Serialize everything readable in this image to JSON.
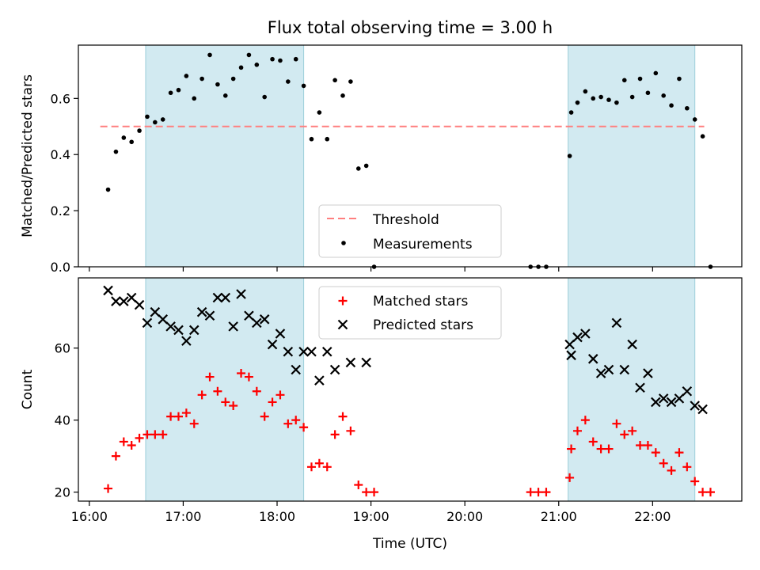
{
  "figure": {
    "title": "Flux total observing time = 3.00 h"
  },
  "colors": {
    "band": "#add8e6",
    "band_edge": "#9ccfd9",
    "threshold": "#ff7f7f",
    "measurement": "#000000",
    "matched": "#ff0000",
    "predicted": "#000000"
  },
  "chart_data": [
    {
      "type": "scatter",
      "panel": "top",
      "title": "Flux total observing time = 3.00 h",
      "xlabel": "",
      "ylabel": "Matched/Predicted stars",
      "xlim": [
        "15:53",
        "22:57"
      ],
      "ylim": [
        0,
        0.79
      ],
      "yticks": [
        "0.0",
        "0.2",
        "0.4",
        "0.6"
      ],
      "ytick_values": [
        0,
        0.2,
        0.4,
        0.6
      ],
      "xticks": [
        "16:00",
        "17:00",
        "18:00",
        "19:00",
        "20:00",
        "21:00",
        "22:00"
      ],
      "show_xtick_labels": false,
      "grid": false,
      "legend": {
        "placement": "bottom-center"
      },
      "shaded_intervals": [
        [
          "16:36",
          "18:17"
        ],
        [
          "21:06",
          "22:27"
        ]
      ],
      "threshold": {
        "name": "Threshold",
        "y": 0.5,
        "x_from": "16:07",
        "x_to": "22:33"
      },
      "series": [
        {
          "name": "Measurements",
          "marker": "dot",
          "points": [
            [
              "16:12",
              0.275
            ],
            [
              "16:17",
              0.41
            ],
            [
              "16:22",
              0.46
            ],
            [
              "16:27",
              0.445
            ],
            [
              "16:32",
              0.485
            ],
            [
              "16:37",
              0.535
            ],
            [
              "16:42",
              0.515
            ],
            [
              "16:47",
              0.525
            ],
            [
              "16:52",
              0.62
            ],
            [
              "16:57",
              0.63
            ],
            [
              "17:02",
              0.68
            ],
            [
              "17:07",
              0.6
            ],
            [
              "17:12",
              0.67
            ],
            [
              "17:17",
              0.755
            ],
            [
              "17:22",
              0.65
            ],
            [
              "17:27",
              0.61
            ],
            [
              "17:32",
              0.67
            ],
            [
              "17:37",
              0.71
            ],
            [
              "17:42",
              0.755
            ],
            [
              "17:47",
              0.72
            ],
            [
              "17:52",
              0.605
            ],
            [
              "17:57",
              0.74
            ],
            [
              "18:02",
              0.735
            ],
            [
              "18:07",
              0.66
            ],
            [
              "18:12",
              0.74
            ],
            [
              "18:17",
              0.645
            ],
            [
              "18:22",
              0.455
            ],
            [
              "18:27",
              0.55
            ],
            [
              "18:32",
              0.455
            ],
            [
              "18:37",
              0.665
            ],
            [
              "18:42",
              0.61
            ],
            [
              "18:47",
              0.66
            ],
            [
              "18:52",
              0.35
            ],
            [
              "18:57",
              0.36
            ],
            [
              "19:02",
              0.0
            ],
            [
              "20:42",
              0.0
            ],
            [
              "20:47",
              0.0
            ],
            [
              "20:52",
              0.0
            ],
            [
              "21:07",
              0.395
            ],
            [
              "21:08",
              0.55
            ],
            [
              "21:12",
              0.585
            ],
            [
              "21:17",
              0.625
            ],
            [
              "21:22",
              0.6
            ],
            [
              "21:27",
              0.605
            ],
            [
              "21:32",
              0.595
            ],
            [
              "21:37",
              0.585
            ],
            [
              "21:42",
              0.665
            ],
            [
              "21:47",
              0.605
            ],
            [
              "21:52",
              0.67
            ],
            [
              "21:57",
              0.62
            ],
            [
              "22:02",
              0.69
            ],
            [
              "22:07",
              0.61
            ],
            [
              "22:12",
              0.575
            ],
            [
              "22:17",
              0.67
            ],
            [
              "22:22",
              0.565
            ],
            [
              "22:27",
              0.525
            ],
            [
              "22:32",
              0.465
            ],
            [
              "22:37",
              0.0
            ]
          ]
        }
      ]
    },
    {
      "type": "scatter",
      "panel": "bottom",
      "xlabel": "Time (UTC)",
      "ylabel": "Count",
      "xlim": [
        "15:53",
        "22:57"
      ],
      "ylim": [
        17.5,
        79.5
      ],
      "yticks": [
        "20",
        "40",
        "60"
      ],
      "ytick_values": [
        20,
        40,
        60
      ],
      "xticks": [
        "16:00",
        "17:00",
        "18:00",
        "19:00",
        "20:00",
        "21:00",
        "22:00"
      ],
      "show_xtick_labels": true,
      "grid": false,
      "legend": {
        "placement": "top-center"
      },
      "shaded_intervals": [
        [
          "16:36",
          "18:17"
        ],
        [
          "21:06",
          "22:27"
        ]
      ],
      "series": [
        {
          "name": "Matched stars",
          "marker": "plus",
          "points": [
            [
              "16:12",
              21
            ],
            [
              "16:17",
              30
            ],
            [
              "16:22",
              34
            ],
            [
              "16:27",
              33
            ],
            [
              "16:32",
              35
            ],
            [
              "16:37",
              36
            ],
            [
              "16:42",
              36
            ],
            [
              "16:47",
              36
            ],
            [
              "16:52",
              41
            ],
            [
              "16:57",
              41
            ],
            [
              "17:02",
              42
            ],
            [
              "17:07",
              39
            ],
            [
              "17:12",
              47
            ],
            [
              "17:17",
              52
            ],
            [
              "17:22",
              48
            ],
            [
              "17:27",
              45
            ],
            [
              "17:32",
              44
            ],
            [
              "17:37",
              53
            ],
            [
              "17:42",
              52
            ],
            [
              "17:47",
              48
            ],
            [
              "17:52",
              41
            ],
            [
              "17:57",
              45
            ],
            [
              "18:02",
              47
            ],
            [
              "18:07",
              39
            ],
            [
              "18:12",
              40
            ],
            [
              "18:17",
              38
            ],
            [
              "18:22",
              27
            ],
            [
              "18:27",
              28
            ],
            [
              "18:32",
              27
            ],
            [
              "18:37",
              36
            ],
            [
              "18:42",
              41
            ],
            [
              "18:47",
              37
            ],
            [
              "18:52",
              22
            ],
            [
              "18:57",
              20
            ],
            [
              "19:02",
              20
            ],
            [
              "20:42",
              20
            ],
            [
              "20:47",
              20
            ],
            [
              "20:52",
              20
            ],
            [
              "21:07",
              24
            ],
            [
              "21:08",
              32
            ],
            [
              "21:12",
              37
            ],
            [
              "21:17",
              40
            ],
            [
              "21:22",
              34
            ],
            [
              "21:27",
              32
            ],
            [
              "21:32",
              32
            ],
            [
              "21:37",
              39
            ],
            [
              "21:42",
              36
            ],
            [
              "21:47",
              37
            ],
            [
              "21:52",
              33
            ],
            [
              "21:57",
              33
            ],
            [
              "22:02",
              31
            ],
            [
              "22:07",
              28
            ],
            [
              "22:12",
              26
            ],
            [
              "22:17",
              31
            ],
            [
              "22:22",
              27
            ],
            [
              "22:27",
              23
            ],
            [
              "22:32",
              20
            ],
            [
              "22:37",
              20
            ]
          ]
        },
        {
          "name": "Predicted stars",
          "marker": "x",
          "points": [
            [
              "16:12",
              76
            ],
            [
              "16:17",
              73
            ],
            [
              "16:22",
              73
            ],
            [
              "16:27",
              74
            ],
            [
              "16:32",
              72
            ],
            [
              "16:37",
              67
            ],
            [
              "16:42",
              70
            ],
            [
              "16:47",
              68
            ],
            [
              "16:52",
              66
            ],
            [
              "16:57",
              65
            ],
            [
              "17:02",
              62
            ],
            [
              "17:07",
              65
            ],
            [
              "17:12",
              70
            ],
            [
              "17:17",
              69
            ],
            [
              "17:22",
              74
            ],
            [
              "17:27",
              74
            ],
            [
              "17:32",
              66
            ],
            [
              "17:37",
              75
            ],
            [
              "17:42",
              69
            ],
            [
              "17:47",
              67
            ],
            [
              "17:52",
              68
            ],
            [
              "17:57",
              61
            ],
            [
              "18:02",
              64
            ],
            [
              "18:07",
              59
            ],
            [
              "18:12",
              54
            ],
            [
              "18:17",
              59
            ],
            [
              "18:22",
              59
            ],
            [
              "18:27",
              51
            ],
            [
              "18:32",
              59
            ],
            [
              "18:37",
              54
            ],
            [
              "18:47",
              56
            ],
            [
              "18:57",
              56
            ],
            [
              "21:07",
              61
            ],
            [
              "21:08",
              58
            ],
            [
              "21:12",
              63
            ],
            [
              "21:17",
              64
            ],
            [
              "21:22",
              57
            ],
            [
              "21:27",
              53
            ],
            [
              "21:32",
              54
            ],
            [
              "21:37",
              67
            ],
            [
              "21:42",
              54
            ],
            [
              "21:47",
              61
            ],
            [
              "21:52",
              49
            ],
            [
              "21:57",
              53
            ],
            [
              "22:02",
              45
            ],
            [
              "22:07",
              46
            ],
            [
              "22:12",
              45
            ],
            [
              "22:17",
              46
            ],
            [
              "22:22",
              48
            ],
            [
              "22:27",
              44
            ],
            [
              "22:32",
              43
            ]
          ]
        }
      ]
    }
  ]
}
